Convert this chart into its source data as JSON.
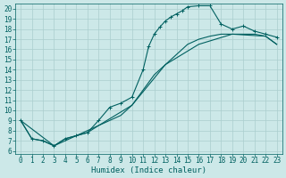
{
  "xlabel": "Humidex (Indice chaleur)",
  "xlim": [
    -0.5,
    23.5
  ],
  "ylim": [
    5.7,
    20.5
  ],
  "xticks": [
    0,
    1,
    2,
    3,
    4,
    5,
    6,
    7,
    8,
    9,
    10,
    11,
    12,
    13,
    14,
    15,
    16,
    17,
    18,
    19,
    20,
    21,
    22,
    23
  ],
  "yticks": [
    6,
    7,
    8,
    9,
    10,
    11,
    12,
    13,
    14,
    15,
    16,
    17,
    18,
    19,
    20
  ],
  "bg_color": "#cce8e8",
  "grid_color": "#aacece",
  "line_color": "#006060",
  "curve1_x": [
    0,
    1,
    2,
    3,
    4,
    5,
    6,
    7,
    8,
    9,
    10,
    11,
    11.5,
    12,
    12.5,
    13,
    13.5,
    14,
    14.5,
    15,
    16,
    17,
    18,
    19,
    20,
    21,
    22,
    23
  ],
  "curve1_y": [
    9.0,
    7.2,
    7.0,
    6.5,
    7.2,
    7.5,
    7.8,
    9.0,
    10.3,
    10.7,
    11.3,
    14.0,
    16.3,
    17.5,
    18.2,
    18.8,
    19.2,
    19.5,
    19.8,
    20.2,
    20.3,
    20.3,
    18.5,
    18.0,
    18.3,
    17.8,
    17.5,
    17.2
  ],
  "curve2_x": [
    0,
    1,
    2,
    3,
    4,
    5,
    6,
    7,
    8,
    9,
    10,
    11,
    12,
    13,
    14,
    15,
    16,
    17,
    18,
    19,
    20,
    21,
    22,
    23
  ],
  "curve2_y": [
    9.0,
    7.2,
    7.0,
    6.5,
    7.2,
    7.5,
    7.8,
    8.5,
    9.0,
    9.5,
    10.5,
    12.0,
    13.5,
    14.5,
    15.5,
    16.5,
    17.0,
    17.3,
    17.5,
    17.5,
    17.5,
    17.5,
    17.3,
    16.5
  ],
  "curve3_x": [
    0,
    3,
    7,
    10,
    13,
    16,
    19,
    22,
    23
  ],
  "curve3_y": [
    9.0,
    6.5,
    8.5,
    10.5,
    14.5,
    16.5,
    17.5,
    17.3,
    16.5
  ],
  "marker": "+",
  "marker_size": 3.5,
  "lw": 0.8,
  "font_size": 5.5,
  "xlabel_size": 6.5
}
